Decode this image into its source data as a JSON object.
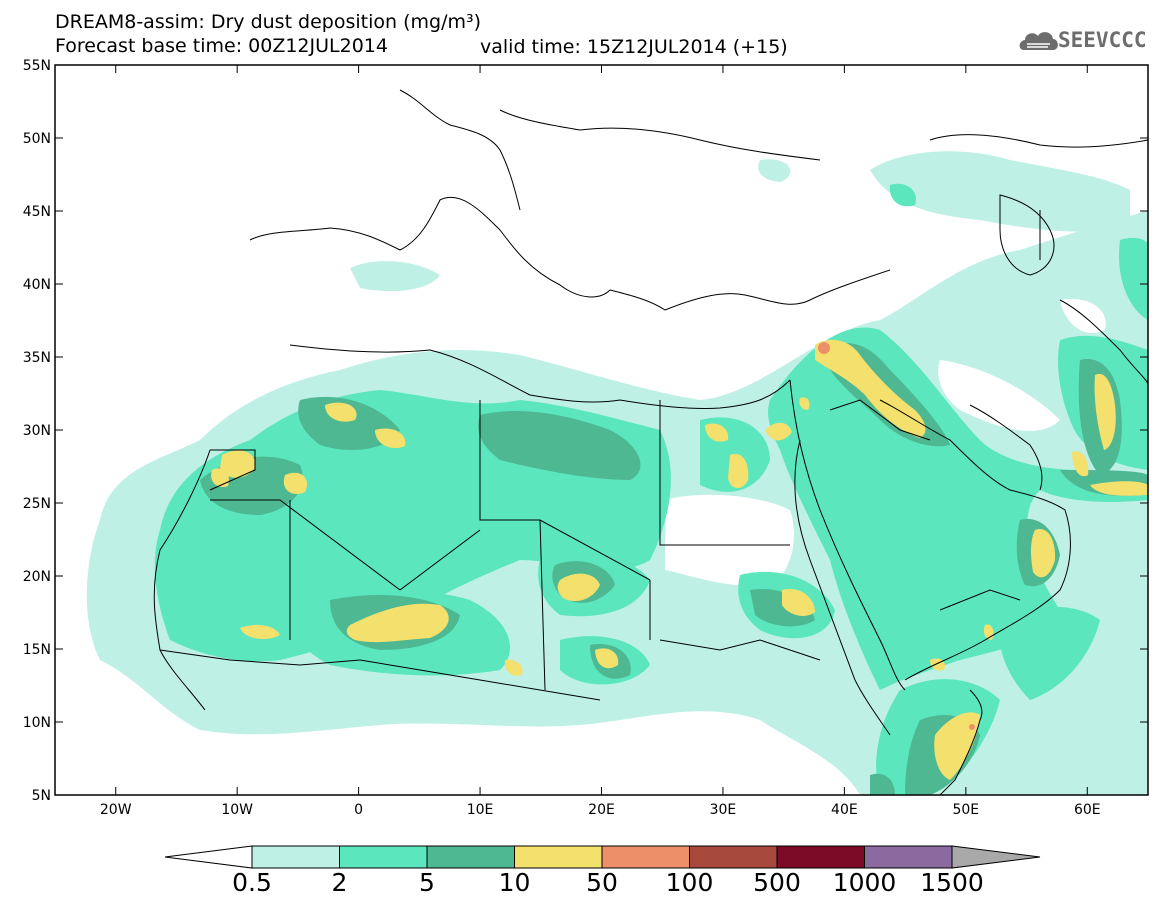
{
  "header": {
    "title_line1": "DREAM8-assim: Dry dust deposition (mg/m³)",
    "title_line2": "Forecast base time: 00Z12JUL2014",
    "valid_time": "valid time: 15Z12JUL2014 (+15)",
    "logo_text": "SEEVCCC"
  },
  "map": {
    "lon_range": [
      -25,
      65
    ],
    "lat_range": [
      5,
      55
    ],
    "lon_ticks": [
      "20W",
      "10W",
      "0",
      "10E",
      "20E",
      "30E",
      "40E",
      "50E",
      "60E"
    ],
    "lat_ticks": [
      "55N",
      "50N",
      "45N",
      "40N",
      "35N",
      "30N",
      "25N",
      "20N",
      "15N",
      "10N",
      "5N"
    ]
  },
  "colorbar": {
    "labels": [
      "0.5",
      "2",
      "5",
      "10",
      "50",
      "100",
      "500",
      "1000",
      "1500"
    ],
    "colors": [
      "#bff0e6",
      "#5ce6bd",
      "#4db891",
      "#f3e06d",
      "#ed8f68",
      "#a7493d",
      "#7b0b26",
      "#8a6a9f",
      "#a9a9a9"
    ]
  },
  "palette": {
    "c1": "#bff0e6",
    "c2": "#5ce6bd",
    "c3": "#4db891",
    "c4": "#f3e06d",
    "c5": "#ed8f68"
  }
}
